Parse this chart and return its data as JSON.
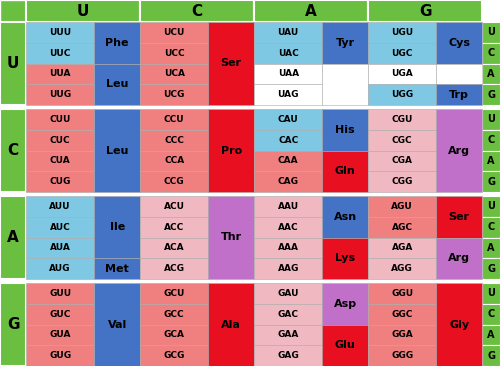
{
  "title_row": [
    "U",
    "C",
    "A",
    "G"
  ],
  "row_labels": [
    "U",
    "C",
    "A",
    "G"
  ],
  "colors": {
    "green": "#6abf40",
    "light_blue": "#7ec8e3",
    "blue": "#4472c4",
    "light_red": "#f08080",
    "red": "#e81020",
    "light_pink": "#f0b8c0",
    "purple": "#c070c8",
    "white": "#ffffff"
  },
  "table": [
    {
      "row": "U",
      "cells": [
        {
          "codons": [
            "UUU",
            "UUC",
            "UUA",
            "UUG"
          ],
          "codon_bg": [
            "light_blue",
            "light_blue",
            "light_red",
            "light_red"
          ],
          "aa_parts": [
            {
              "text": "Phe",
              "bg": "blue",
              "rows": [
                0,
                1
              ]
            },
            {
              "text": "Leu",
              "bg": "blue",
              "rows": [
                2,
                3
              ]
            }
          ]
        },
        {
          "codons": [
            "UCU",
            "UCC",
            "UCA",
            "UCG"
          ],
          "codon_bg": [
            "light_red",
            "light_red",
            "light_red",
            "light_red"
          ],
          "aa_parts": [
            {
              "text": "Ser",
              "bg": "red",
              "rows": [
                0,
                1,
                2,
                3
              ]
            }
          ]
        },
        {
          "codons": [
            "UAU",
            "UAC",
            "UAA",
            "UAG"
          ],
          "codon_bg": [
            "light_blue",
            "light_blue",
            "white",
            "white"
          ],
          "aa_parts": [
            {
              "text": "Tyr",
              "bg": "blue",
              "rows": [
                0,
                1
              ]
            },
            {
              "text": "",
              "bg": "white",
              "rows": [
                2,
                3
              ]
            }
          ]
        },
        {
          "codons": [
            "UGU",
            "UGC",
            "UGA",
            "UGG"
          ],
          "codon_bg": [
            "light_blue",
            "light_blue",
            "white",
            "light_blue"
          ],
          "aa_parts": [
            {
              "text": "Cys",
              "bg": "blue",
              "rows": [
                0,
                1
              ]
            },
            {
              "text": "",
              "bg": "white",
              "rows": [
                2
              ]
            },
            {
              "text": "Trp",
              "bg": "blue",
              "rows": [
                3
              ]
            }
          ]
        }
      ]
    },
    {
      "row": "C",
      "cells": [
        {
          "codons": [
            "CUU",
            "CUC",
            "CUA",
            "CUG"
          ],
          "codon_bg": [
            "light_red",
            "light_red",
            "light_red",
            "light_red"
          ],
          "aa_parts": [
            {
              "text": "Leu",
              "bg": "blue",
              "rows": [
                0,
                1,
                2,
                3
              ]
            }
          ]
        },
        {
          "codons": [
            "CCU",
            "CCC",
            "CCA",
            "CCG"
          ],
          "codon_bg": [
            "light_red",
            "light_red",
            "light_red",
            "light_red"
          ],
          "aa_parts": [
            {
              "text": "Pro",
              "bg": "red",
              "rows": [
                0,
                1,
                2,
                3
              ]
            }
          ]
        },
        {
          "codons": [
            "CAU",
            "CAC",
            "CAA",
            "CAG"
          ],
          "codon_bg": [
            "light_blue",
            "light_blue",
            "light_red",
            "light_red"
          ],
          "aa_parts": [
            {
              "text": "His",
              "bg": "blue",
              "rows": [
                0,
                1
              ]
            },
            {
              "text": "Gln",
              "bg": "red",
              "rows": [
                2,
                3
              ]
            }
          ]
        },
        {
          "codons": [
            "CGU",
            "CGC",
            "CGA",
            "CGG"
          ],
          "codon_bg": [
            "light_pink",
            "light_pink",
            "light_pink",
            "light_pink"
          ],
          "aa_parts": [
            {
              "text": "Arg",
              "bg": "purple",
              "rows": [
                0,
                1,
                2,
                3
              ]
            }
          ]
        }
      ]
    },
    {
      "row": "A",
      "cells": [
        {
          "codons": [
            "AUU",
            "AUC",
            "AUA",
            "AUG"
          ],
          "codon_bg": [
            "light_blue",
            "light_blue",
            "light_blue",
            "light_blue"
          ],
          "aa_parts": [
            {
              "text": "Ile",
              "bg": "blue",
              "rows": [
                0,
                1,
                2
              ]
            },
            {
              "text": "Met",
              "bg": "blue",
              "rows": [
                3
              ]
            }
          ]
        },
        {
          "codons": [
            "ACU",
            "ACC",
            "ACA",
            "ACG"
          ],
          "codon_bg": [
            "light_pink",
            "light_pink",
            "light_pink",
            "light_pink"
          ],
          "aa_parts": [
            {
              "text": "Thr",
              "bg": "purple",
              "rows": [
                0,
                1,
                2,
                3
              ]
            }
          ]
        },
        {
          "codons": [
            "AAU",
            "AAC",
            "AAA",
            "AAG"
          ],
          "codon_bg": [
            "light_pink",
            "light_pink",
            "light_pink",
            "light_pink"
          ],
          "aa_parts": [
            {
              "text": "Asn",
              "bg": "blue",
              "rows": [
                0,
                1
              ]
            },
            {
              "text": "Lys",
              "bg": "red",
              "rows": [
                2,
                3
              ]
            }
          ]
        },
        {
          "codons": [
            "AGU",
            "AGC",
            "AGA",
            "AGG"
          ],
          "codon_bg": [
            "light_red",
            "light_red",
            "light_pink",
            "light_pink"
          ],
          "aa_parts": [
            {
              "text": "Ser",
              "bg": "red",
              "rows": [
                0,
                1
              ]
            },
            {
              "text": "Arg",
              "bg": "purple",
              "rows": [
                2,
                3
              ]
            }
          ]
        }
      ]
    },
    {
      "row": "G",
      "cells": [
        {
          "codons": [
            "GUU",
            "GUC",
            "GUA",
            "GUG"
          ],
          "codon_bg": [
            "light_red",
            "light_red",
            "light_red",
            "light_red"
          ],
          "aa_parts": [
            {
              "text": "Val",
              "bg": "blue",
              "rows": [
                0,
                1,
                2,
                3
              ]
            }
          ]
        },
        {
          "codons": [
            "GCU",
            "GCC",
            "GCA",
            "GCG"
          ],
          "codon_bg": [
            "light_red",
            "light_red",
            "light_red",
            "light_red"
          ],
          "aa_parts": [
            {
              "text": "Ala",
              "bg": "red",
              "rows": [
                0,
                1,
                2,
                3
              ]
            }
          ]
        },
        {
          "codons": [
            "GAU",
            "GAC",
            "GAA",
            "GAG"
          ],
          "codon_bg": [
            "light_pink",
            "light_pink",
            "light_pink",
            "light_pink"
          ],
          "aa_parts": [
            {
              "text": "Asp",
              "bg": "purple",
              "rows": [
                0,
                1
              ]
            },
            {
              "text": "Glu",
              "bg": "red",
              "rows": [
                2,
                3
              ]
            }
          ]
        },
        {
          "codons": [
            "GGU",
            "GGC",
            "GGA",
            "GGG"
          ],
          "codon_bg": [
            "light_red",
            "light_red",
            "light_red",
            "light_red"
          ],
          "aa_parts": [
            {
              "text": "Gly",
              "bg": "red",
              "rows": [
                0,
                1,
                2,
                3
              ]
            }
          ]
        }
      ]
    }
  ]
}
